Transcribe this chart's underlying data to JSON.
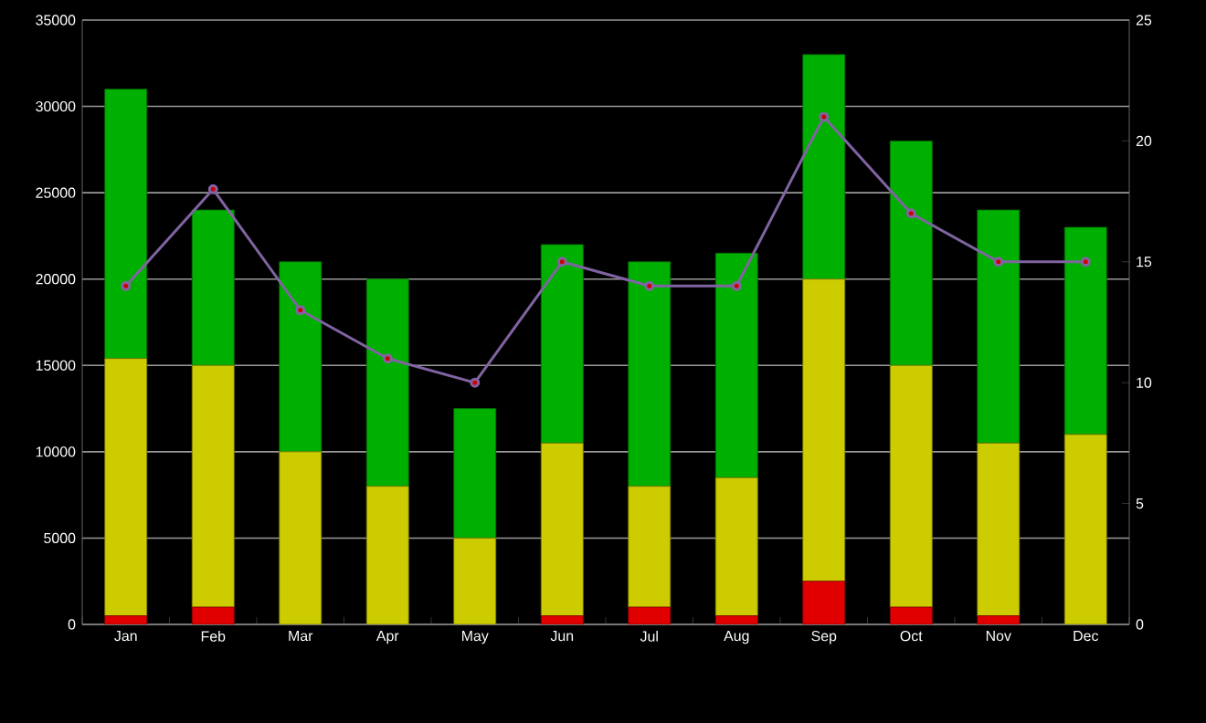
{
  "chart_data": {
    "type": "bar",
    "stacked": true,
    "categories": [
      "Jan",
      "Feb",
      "Mar",
      "Apr",
      "May",
      "Jun",
      "Jul",
      "Aug",
      "Sep",
      "Oct",
      "Nov",
      "Dec"
    ],
    "series": [
      {
        "color": "#e00000",
        "values": [
          500,
          1000,
          0,
          0,
          0,
          500,
          1000,
          500,
          2500,
          1000,
          500,
          0
        ]
      },
      {
        "color": "#cccc00",
        "values": [
          14900,
          14000,
          10000,
          8000,
          5000,
          10000,
          7000,
          8000,
          17500,
          14000,
          10000,
          11000
        ]
      },
      {
        "color": "#00b000",
        "values": [
          15600,
          9000,
          11000,
          12000,
          7500,
          11500,
          13000,
          13000,
          13000,
          13000,
          13500,
          12000
        ]
      },
      {
        "type": "line",
        "axis": "y2",
        "color": "#8064a2",
        "marker": "circle",
        "values": [
          14,
          18,
          13,
          11,
          10,
          15,
          14,
          14,
          21,
          17,
          15,
          15
        ]
      }
    ],
    "ylim": [
      0,
      35000
    ],
    "yticks": [
      0,
      5000,
      10000,
      15000,
      20000,
      25000,
      30000,
      35000
    ],
    "y2lim": [
      0,
      25
    ],
    "y2ticks": [
      0,
      5,
      10,
      15,
      20,
      25
    ],
    "grid": "y"
  }
}
